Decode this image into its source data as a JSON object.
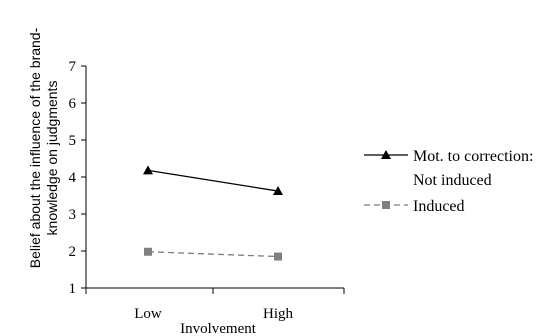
{
  "chart_data": {
    "type": "line",
    "categories": [
      "Low",
      "High"
    ],
    "xlabel": "Involvement",
    "ylabel_lines": [
      "Belief about the influence of the brand-",
      "knowledge on judgments"
    ],
    "ylim": [
      1,
      7
    ],
    "yticks": [
      "1",
      "2",
      "3",
      "4",
      "5",
      "6",
      "7"
    ],
    "grid": false,
    "legend_position": "right",
    "series": [
      {
        "name_lines": [
          "Mot. to correction:",
          "Not induced"
        ],
        "values": [
          4.18,
          3.62
        ],
        "color": "#000000",
        "marker": "triangle",
        "dash": "solid"
      },
      {
        "name_lines": [
          "Induced"
        ],
        "values": [
          1.98,
          1.85
        ],
        "color": "#7f7f7f",
        "marker": "square",
        "dash": "dashed"
      }
    ]
  }
}
